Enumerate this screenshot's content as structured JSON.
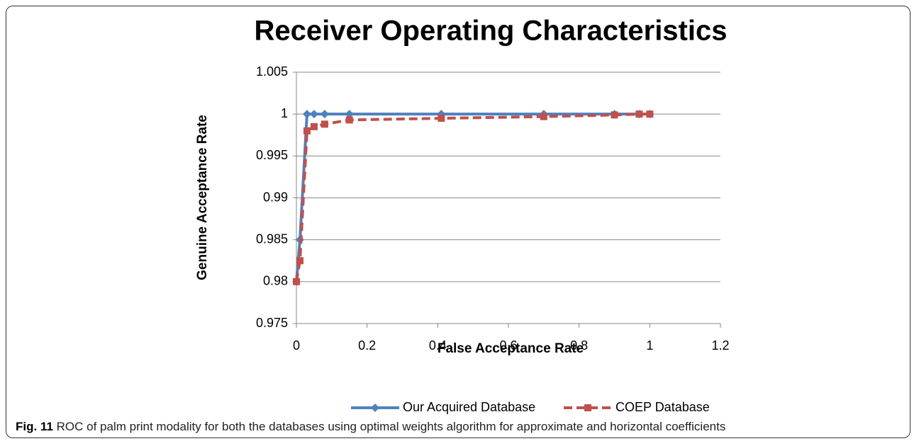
{
  "chart_data": {
    "type": "line",
    "title": "Receiver Operating Characteristics",
    "xlabel": "False Acceptance Rate",
    "ylabel": "Genuine Acceptance Rate",
    "xlim": [
      0,
      1.2
    ],
    "xticks": [
      0,
      0.2,
      0.4,
      0.6,
      0.8,
      1,
      1.2
    ],
    "ylim": [
      0.975,
      1.005
    ],
    "yticks": [
      0.975,
      0.98,
      0.985,
      0.99,
      0.995,
      1,
      1.005
    ],
    "grid": true,
    "legend": "bottom",
    "series": [
      {
        "name": "Our Acquired Database",
        "color": "#4f81bd",
        "marker": "diamond",
        "dash": false,
        "x": [
          0,
          0.01,
          0.03,
          0.05,
          0.08,
          0.15,
          0.41,
          0.7,
          0.9,
          0.97,
          1
        ],
        "values": [
          0.98,
          0.985,
          1,
          1,
          1,
          1,
          1,
          1,
          1,
          1,
          1
        ]
      },
      {
        "name": "COEP Database",
        "color": "#c0504d",
        "marker": "square",
        "dash": true,
        "x": [
          0,
          0.01,
          0.03,
          0.05,
          0.08,
          0.15,
          0.41,
          0.7,
          0.9,
          0.97,
          1
        ],
        "values": [
          0.98,
          0.9825,
          0.998,
          0.9985,
          0.9988,
          0.9993,
          0.9995,
          0.9997,
          0.9999,
          1,
          1
        ]
      }
    ]
  },
  "caption": {
    "label": "Fig. 11",
    "text": "ROC of palm print modality for both the databases using optimal weights algorithm for approximate and horizontal coefficients"
  }
}
